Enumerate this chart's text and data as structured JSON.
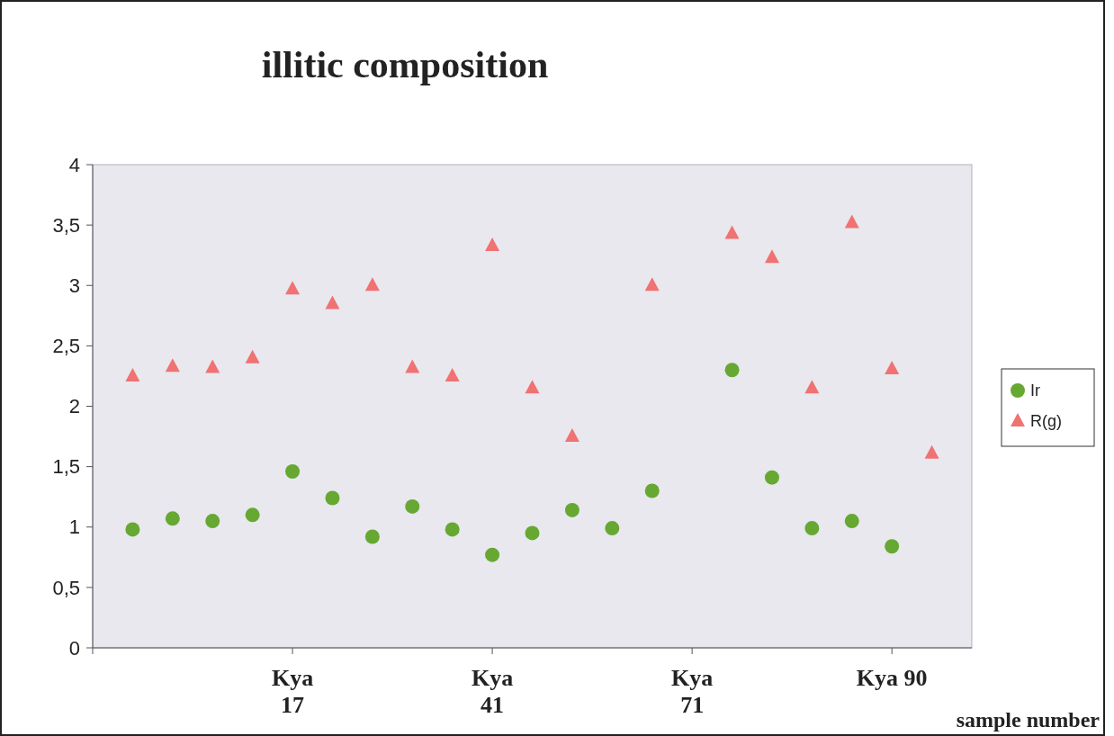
{
  "chart_data": {
    "type": "scatter",
    "title": "illitic composition",
    "xlabel": "sample number",
    "categories": [
      null,
      null,
      null,
      null,
      "Kya\n17",
      null,
      null,
      null,
      null,
      "Kya\n41",
      null,
      null,
      null,
      null,
      "Kya\n71",
      null,
      null,
      null,
      null,
      "Kya 90",
      null
    ],
    "series": [
      {
        "name": "Ir",
        "color": "#66a832",
        "marker": "circle",
        "values": [
          0.98,
          1.07,
          1.05,
          1.1,
          1.46,
          1.24,
          0.92,
          1.17,
          0.98,
          0.77,
          0.95,
          1.14,
          0.99,
          1.3,
          null,
          2.3,
          1.41,
          0.99,
          1.05,
          0.84,
          null
        ]
      },
      {
        "name": "R(g)",
        "color": "#f07272",
        "marker": "triangle",
        "values": [
          2.25,
          2.33,
          2.32,
          2.4,
          2.97,
          2.85,
          3.0,
          2.32,
          2.25,
          3.33,
          2.15,
          1.75,
          null,
          3.0,
          null,
          3.43,
          3.23,
          2.15,
          3.52,
          2.31,
          1.61
        ]
      }
    ],
    "ylim": [
      0,
      4
    ],
    "yticks": [
      0,
      {
        "value": 0.5,
        "label": "0,5"
      },
      1,
      {
        "value": 1.5,
        "label": "1,5"
      },
      2,
      {
        "value": 2.5,
        "label": "2,5"
      },
      3,
      {
        "value": 3.5,
        "label": "3,5"
      },
      4
    ],
    "grid": false,
    "legend": "right"
  }
}
